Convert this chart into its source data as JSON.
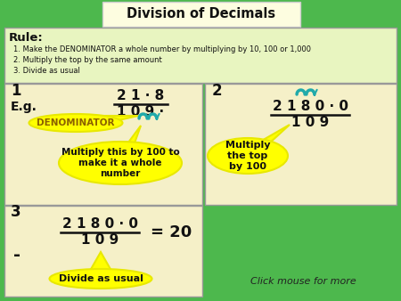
{
  "title": "Division of Decimals",
  "bg_color": "#4db84d",
  "title_box_color": "#fdfde0",
  "rule_box_color": "#e8f5c0",
  "panel_color": "#f5f0c8",
  "rule_title": "Rule:",
  "rules": [
    "1. Make the DENOMINATOR a whole number by multiplying by 10, 100 or 1,000",
    "2. Multiply the top by the same amount",
    "3. Divide as usual"
  ],
  "panel1_num": "1",
  "panel1_eg": "E.g.",
  "panel1_fraction_top": "2 1 · 8",
  "panel1_fraction_bot": "1 0 9 ·",
  "panel1_label1": "DENOMINATOR",
  "panel1_label2": "Multiply this by 100 to\nmake it a whole\nnumber",
  "panel2_num": "2",
  "panel2_fraction_top": "2 1 8 0 · 0",
  "panel2_fraction_bot": "1 0 9",
  "panel2_label": "Multiply\nthe top\nby 100",
  "panel3_num": "3",
  "panel3_fraction_top": "2 1 8 0 · 0",
  "panel3_fraction_bot": "1 0 9",
  "panel3_result": "= 20",
  "panel3_minus": "-",
  "panel3_label": "Divide as usual",
  "click_text": "Click mouse for more",
  "yellow_color": "#ffff00",
  "yellow_dark": "#e8e800",
  "teal_color": "#20aaaa",
  "dark_text": "#111111",
  "denom_label_color": "#8B6000"
}
